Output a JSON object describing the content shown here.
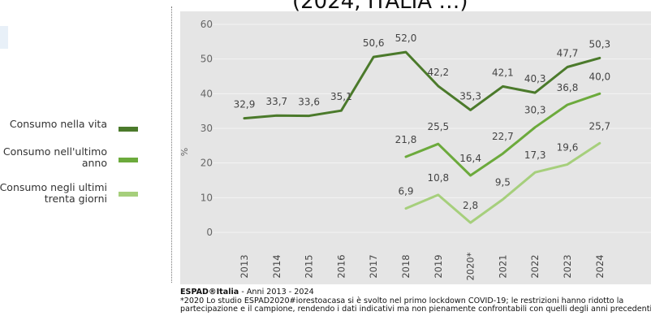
{
  "header_fragment": "(2024, ITALIA …)",
  "legend_items": [
    {
      "label": "Consumo nella vita",
      "color": "#4b7a2b"
    },
    {
      "label": "Consumo nell'ultimo anno",
      "color": "#6caa3c"
    },
    {
      "label": "Consumo negli ultimi trenta giorni",
      "color": "#a6cf7c"
    }
  ],
  "chart_data": {
    "type": "line",
    "ylabel": "%",
    "ylim": [
      0,
      60
    ],
    "yticks": [
      0,
      10,
      20,
      30,
      40,
      50,
      60
    ],
    "categories": [
      "2013",
      "2014",
      "2015",
      "2016",
      "2017",
      "2018",
      "2019",
      "2020*",
      "2021",
      "2022",
      "2023",
      "2024"
    ],
    "series": [
      {
        "name": "Consumo nella vita",
        "color": "#4b7a2b",
        "values": [
          32.9,
          33.7,
          33.6,
          35.1,
          50.6,
          52.0,
          42.2,
          35.3,
          42.1,
          40.3,
          47.7,
          50.3
        ],
        "labels": [
          "32,9",
          "33,7",
          "33,6",
          "35,1",
          "50,6",
          "52,0",
          "42,2",
          "35,3",
          "42,1",
          "40,3",
          "47,7",
          "50,3"
        ]
      },
      {
        "name": "Consumo nell'ultimo anno",
        "color": "#6caa3c",
        "values": [
          null,
          null,
          null,
          null,
          null,
          21.8,
          25.5,
          16.4,
          22.7,
          30.3,
          36.8,
          40.0
        ],
        "labels": [
          "",
          "",
          "",
          "",
          "",
          "21,8",
          "25,5",
          "16,4",
          "22,7",
          "30,3",
          "36,8",
          "40,0"
        ]
      },
      {
        "name": "Consumo negli ultimi trenta giorni",
        "color": "#a6cf7c",
        "values": [
          null,
          null,
          null,
          null,
          null,
          6.9,
          10.8,
          2.8,
          9.5,
          17.3,
          19.6,
          25.7
        ],
        "labels": [
          "",
          "",
          "",
          "",
          "",
          "6,9",
          "10,8",
          "2,8",
          "9,5",
          "17,3",
          "19,6",
          "25,7"
        ]
      }
    ],
    "grid": true,
    "legend_position": "left"
  },
  "footer": {
    "source_bold": "ESPAD®Italia",
    "source_rest": " - Anni 2013 - 2024",
    "note": "*2020 Lo studio ESPAD2020#iorestoacasa si è svolto nel primo lockdown COVID-19; le restrizioni hanno ridotto la partecipazione e il campione, rendendo i dati indicativi ma non pienamente confrontabili con quelli degli anni precedenti."
  }
}
